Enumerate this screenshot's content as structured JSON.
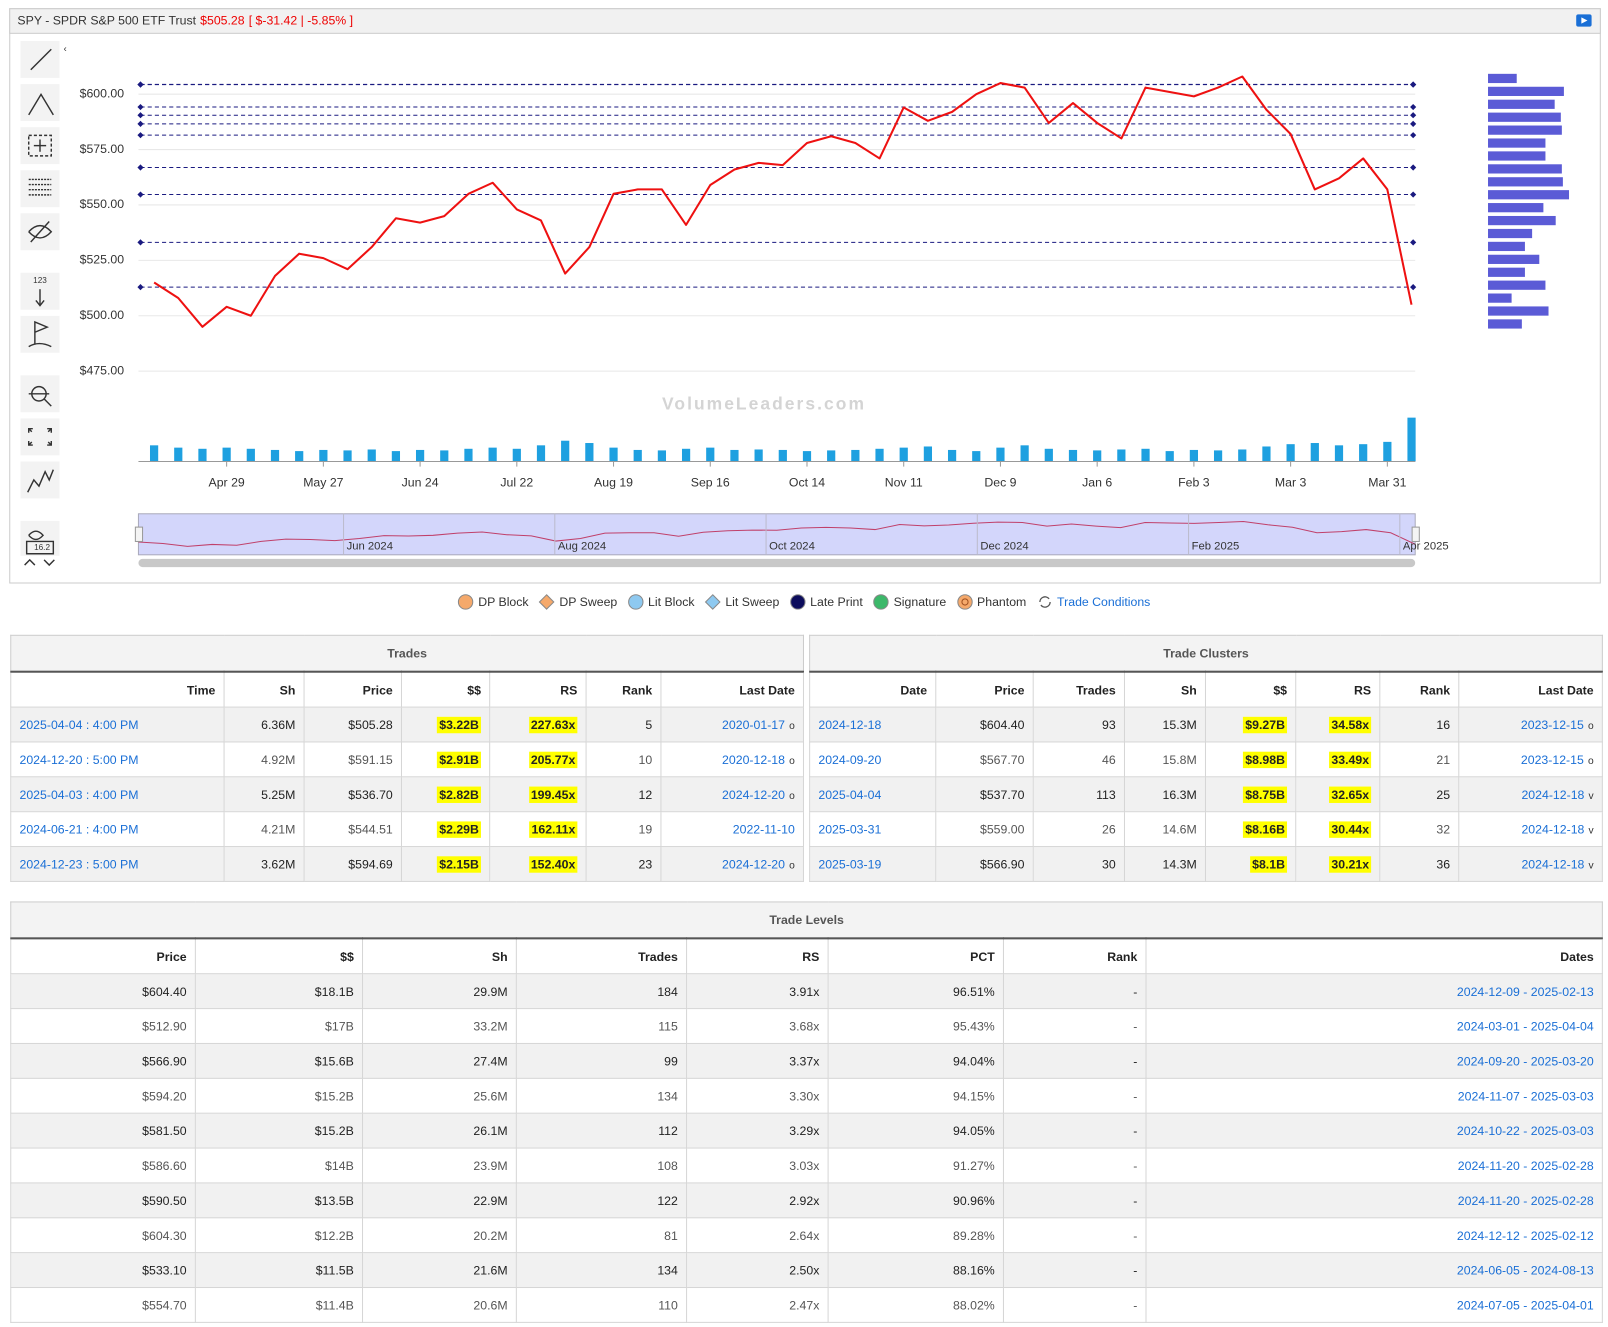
{
  "header": {
    "symbol": "SPY - SPDR S&P 500 ETF Trust",
    "price": "$505.28",
    "change": "[ $-31.42 | -5.85% ]"
  },
  "toolbar": {
    "counter_label": "123",
    "value_label": "16.2"
  },
  "chart_data": {
    "type": "line",
    "categories": [
      null,
      null,
      null,
      "Apr 29",
      null,
      null,
      null,
      "May 27",
      null,
      null,
      null,
      "Jun 24",
      null,
      null,
      null,
      "Jul 22",
      null,
      null,
      null,
      "Aug 19",
      null,
      null,
      null,
      "Sep 16",
      null,
      null,
      null,
      "Oct 14",
      null,
      null,
      null,
      "Nov 11",
      null,
      null,
      null,
      "Dec 9",
      null,
      null,
      null,
      "Jan 6",
      null,
      null,
      null,
      "Feb 3",
      null,
      null,
      null,
      "Mar 3",
      null,
      null,
      null,
      "Mar 31",
      null
    ],
    "series": [
      {
        "color": "#ee1111",
        "values": [
          515,
          508,
          495,
          504,
          500,
          518,
          528,
          526,
          521,
          531,
          544,
          542,
          545,
          555,
          560,
          548,
          543,
          519,
          531,
          555,
          557,
          557,
          541,
          559,
          566,
          569,
          568,
          578,
          581,
          578,
          571,
          594,
          588,
          592,
          600,
          605,
          603,
          587,
          596,
          587,
          580,
          603,
          601,
          599,
          603,
          608,
          593,
          582,
          557,
          562,
          571,
          557,
          505
        ]
      }
    ],
    "ylim": [
      471,
      624
    ],
    "yticks": [
      {
        "value": 475,
        "label": "$475.00"
      },
      {
        "value": 500,
        "label": "$500.00"
      },
      {
        "value": 525,
        "label": "$525.00"
      },
      {
        "value": 550,
        "label": "$550.00"
      },
      {
        "value": 575,
        "label": "$575.00"
      },
      {
        "value": 600,
        "label": "$600.00"
      }
    ],
    "grid": true,
    "levels": {
      "color": "#1a1a80",
      "values": [
        604.4,
        512.9,
        566.9,
        594.2,
        581.5,
        586.6,
        590.5,
        604.3,
        533.1,
        554.7
      ]
    },
    "volume": {
      "color": "#1ea0e0",
      "ylim": [
        0,
        200
      ],
      "values": [
        70,
        60,
        55,
        60,
        55,
        50,
        45,
        50,
        48,
        52,
        45,
        50,
        48,
        55,
        60,
        55,
        70,
        90,
        80,
        60,
        50,
        48,
        55,
        60,
        50,
        52,
        50,
        45,
        48,
        50,
        55,
        60,
        65,
        50,
        45,
        60,
        70,
        55,
        50,
        48,
        52,
        55,
        45,
        50,
        48,
        52,
        65,
        75,
        80,
        70,
        75,
        85,
        190
      ]
    },
    "volume_profile": {
      "color": "#5b5bd6",
      "xlim": [
        0,
        100
      ],
      "values": [
        28,
        74,
        65,
        71,
        72,
        56,
        56,
        72,
        73,
        79,
        54,
        66,
        43,
        36,
        50,
        36,
        56,
        23,
        59,
        33
      ]
    },
    "navigator": {
      "color": "#c0406a",
      "labels": [
        "Jun 2024",
        "Aug 2024",
        "Oct 2024",
        "Dec 2024",
        "Feb 2025",
        "Apr 2025"
      ]
    },
    "watermark": "VolumeLeaders.com"
  },
  "legend": [
    {
      "name": "DP Block",
      "color": "#f5a96b",
      "shape": "circle"
    },
    {
      "name": "DP Sweep",
      "color": "#f5a96b",
      "shape": "diamond"
    },
    {
      "name": "Lit Block",
      "color": "#8ec9f0",
      "shape": "circle"
    },
    {
      "name": "Lit Sweep",
      "color": "#8ec9f0",
      "shape": "diamond"
    },
    {
      "name": "Late Print",
      "color": "#0d0d5c",
      "shape": "circle"
    },
    {
      "name": "Signature",
      "color": "#3cb86a",
      "shape": "circle"
    },
    {
      "name": "Phantom",
      "color": "#f5a96b",
      "shape": "ring"
    },
    {
      "name": "Trade Conditions",
      "color": "#1a6fd6",
      "shape": "cycle"
    }
  ],
  "trades": {
    "title": "Trades",
    "columns": [
      "Time",
      "Sh",
      "Price",
      "$$",
      "RS",
      "Rank",
      "Last Date"
    ],
    "rows": [
      [
        "2025-04-04 : 4:00 PM",
        "6.36M",
        "$505.28",
        "$3.22B",
        "227.63x",
        "5",
        "2020-01-17"
      ],
      [
        "2024-12-20 : 5:00 PM",
        "4.92M",
        "$591.15",
        "$2.91B",
        "205.77x",
        "10",
        "2020-12-18"
      ],
      [
        "2025-04-03 : 4:00 PM",
        "5.25M",
        "$536.70",
        "$2.82B",
        "199.45x",
        "12",
        "2024-12-20"
      ],
      [
        "2024-06-21 : 4:00 PM",
        "4.21M",
        "$544.51",
        "$2.29B",
        "162.11x",
        "19",
        "2022-11-10"
      ],
      [
        "2024-12-23 : 5:00 PM",
        "3.62M",
        "$594.69",
        "$2.15B",
        "152.40x",
        "23",
        "2024-12-20"
      ]
    ],
    "flags": [
      "o",
      "o",
      "o",
      null,
      "o"
    ]
  },
  "clusters": {
    "title": "Trade Clusters",
    "columns": [
      "Date",
      "Price",
      "Trades",
      "Sh",
      "$$",
      "RS",
      "Rank",
      "Last Date"
    ],
    "rows": [
      [
        "2024-12-18",
        "$604.40",
        "93",
        "15.3M",
        "$9.27B",
        "34.58x",
        "16",
        "2023-12-15"
      ],
      [
        "2024-09-20",
        "$567.70",
        "46",
        "15.8M",
        "$8.98B",
        "33.49x",
        "21",
        "2023-12-15"
      ],
      [
        "2025-04-04",
        "$537.70",
        "113",
        "16.3M",
        "$8.75B",
        "32.65x",
        "25",
        "2024-12-18"
      ],
      [
        "2025-03-31",
        "$559.00",
        "26",
        "14.6M",
        "$8.16B",
        "30.44x",
        "32",
        "2024-12-18"
      ],
      [
        "2025-03-19",
        "$566.90",
        "30",
        "14.3M",
        "$8.1B",
        "30.21x",
        "36",
        "2024-12-18"
      ]
    ],
    "flags": [
      "o",
      "o",
      "v",
      "v",
      "v"
    ]
  },
  "levels": {
    "title": "Trade Levels",
    "columns": [
      "Price",
      "$$",
      "Sh",
      "Trades",
      "RS",
      "PCT",
      "Rank",
      "Dates"
    ],
    "rows": [
      [
        "$604.40",
        "$18.1B",
        "29.9M",
        "184",
        "3.91x",
        "96.51%",
        "-",
        "2024-12-09 - 2025-02-13"
      ],
      [
        "$512.90",
        "$17B",
        "33.2M",
        "115",
        "3.68x",
        "95.43%",
        "-",
        "2024-03-01 - 2025-04-04"
      ],
      [
        "$566.90",
        "$15.6B",
        "27.4M",
        "99",
        "3.37x",
        "94.04%",
        "-",
        "2024-09-20 - 2025-03-20"
      ],
      [
        "$594.20",
        "$15.2B",
        "25.6M",
        "134",
        "3.30x",
        "94.15%",
        "-",
        "2024-11-07 - 2025-03-03"
      ],
      [
        "$581.50",
        "$15.2B",
        "26.1M",
        "112",
        "3.29x",
        "94.05%",
        "-",
        "2024-10-22 - 2025-03-03"
      ],
      [
        "$586.60",
        "$14B",
        "23.9M",
        "108",
        "3.03x",
        "91.27%",
        "-",
        "2024-11-20 - 2025-02-28"
      ],
      [
        "$590.50",
        "$13.5B",
        "22.9M",
        "122",
        "2.92x",
        "90.96%",
        "-",
        "2024-11-20 - 2025-02-28"
      ],
      [
        "$604.30",
        "$12.2B",
        "20.2M",
        "81",
        "2.64x",
        "89.28%",
        "-",
        "2024-12-12 - 2025-02-12"
      ],
      [
        "$533.10",
        "$11.5B",
        "21.6M",
        "134",
        "2.50x",
        "88.16%",
        "-",
        "2024-06-05 - 2024-08-13"
      ],
      [
        "$554.70",
        "$11.4B",
        "20.6M",
        "110",
        "2.47x",
        "88.02%",
        "-",
        "2024-07-05 - 2025-04-01"
      ]
    ]
  }
}
